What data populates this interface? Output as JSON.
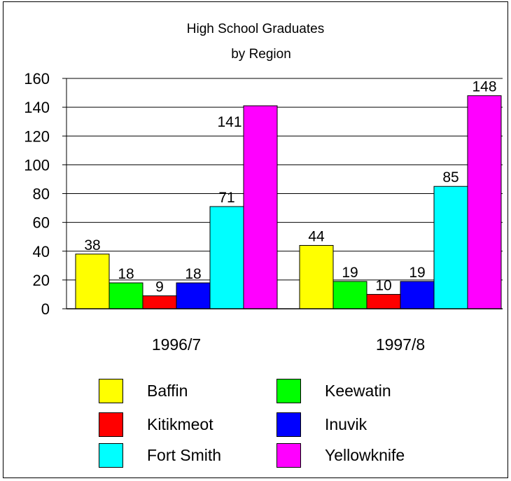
{
  "chart_data": {
    "type": "bar",
    "title": "High School Graduates",
    "subtitle": "by Region",
    "categories": [
      "1996/7",
      "1997/8"
    ],
    "ylim": [
      0,
      160
    ],
    "yticks": [
      0,
      20,
      40,
      60,
      80,
      100,
      120,
      140,
      160
    ],
    "grid": true,
    "legend_position": "bottom",
    "series": [
      {
        "name": "Baffin",
        "color": "#ffff00",
        "values": [
          38,
          44
        ]
      },
      {
        "name": "Keewatin",
        "color": "#00ff00",
        "values": [
          18,
          19
        ]
      },
      {
        "name": "Kitikmeot",
        "color": "#ff0000",
        "values": [
          9,
          10
        ]
      },
      {
        "name": "Inuvik",
        "color": "#0000ff",
        "values": [
          18,
          19
        ]
      },
      {
        "name": "Fort Smith",
        "color": "#00ffff",
        "values": [
          71,
          85
        ]
      },
      {
        "name": "Yellowknife",
        "color": "#ff00ff",
        "values": [
          141,
          148
        ]
      }
    ],
    "data_labels": [
      [
        "38",
        "18",
        "9",
        "18",
        "71",
        "141"
      ],
      [
        "44",
        "19",
        "10",
        "19",
        "85",
        "148"
      ]
    ]
  }
}
